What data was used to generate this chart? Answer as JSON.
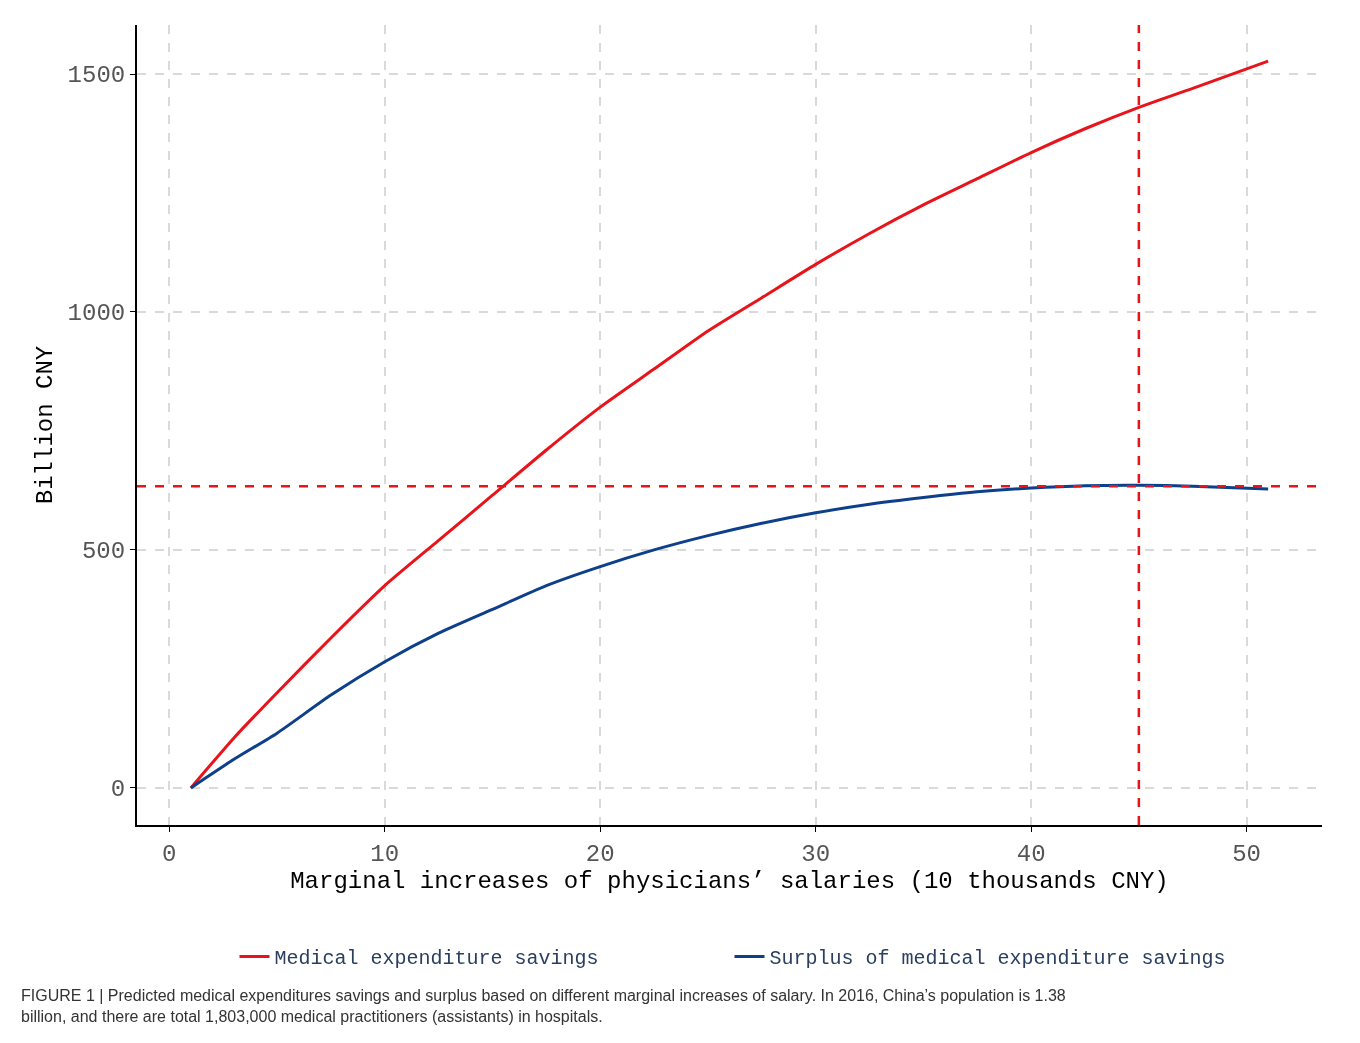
{
  "chart_data": {
    "type": "line",
    "xlabel": "Marginal increases of physicians’ salaries (10 thousands CNY)",
    "ylabel": "Billion CNY",
    "x": [
      1,
      3,
      5,
      7.5,
      10,
      12.5,
      15,
      17.5,
      20,
      22.5,
      25,
      27.5,
      30,
      32.5,
      35,
      37.5,
      40,
      42.5,
      45,
      47.5,
      51
    ],
    "series": [
      {
        "name": "Medical expenditure savings",
        "color": "#e8141b",
        "values": [
          0,
          105,
          200,
          315,
          425,
          520,
          615,
          710,
          800,
          880,
          960,
          1030,
          1100,
          1165,
          1225,
          1280,
          1335,
          1385,
          1430,
          1470,
          1527
        ]
      },
      {
        "name": "Surplus of medical expenditure savings",
        "color": "#0d3f8a",
        "values": [
          0,
          60,
          115,
          195,
          265,
          325,
          375,
          425,
          465,
          500,
          530,
          556,
          578,
          596,
          610,
          622,
          630,
          635,
          636,
          634,
          628
        ]
      }
    ],
    "xlim": [
      -1.5,
      53.5
    ],
    "ylim": [
      -78,
      1603
    ],
    "xticks": [
      0,
      10,
      20,
      30,
      40,
      50
    ],
    "yticks": [
      0,
      500,
      1000,
      1500
    ],
    "grid": true,
    "legend": "bottom",
    "marker": "none",
    "line_style": "solid",
    "ref_lines": [
      {
        "axis": "y",
        "value": 634,
        "color": "#e8141b",
        "line_style": "dashed"
      },
      {
        "axis": "x",
        "value": 45,
        "color": "#e8141b",
        "line_style": "dashed"
      }
    ],
    "annotations": [
      "FIGURE 1 | Predicted medical expenditures savings and surplus based on different marginal increases of salary. In 2016, China’s population is 1.38 billion, and there are total 1,803,000 medical practitioners (assistants) in hospitals."
    ]
  }
}
